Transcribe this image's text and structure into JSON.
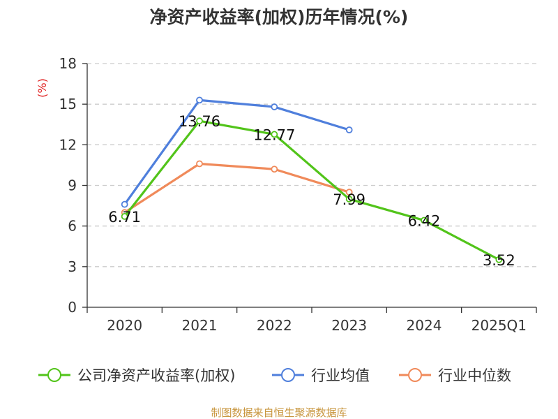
{
  "chart_data": {
    "type": "line",
    "title": "净资产收益率(加权)历年情况(%)",
    "ylabel": "(%)",
    "xlabel": "",
    "categories": [
      "2020",
      "2021",
      "2022",
      "2023",
      "2024",
      "2025Q1"
    ],
    "ylim": [
      0,
      18
    ],
    "yticks": [
      0,
      3,
      6,
      9,
      12,
      15,
      18
    ],
    "grid": "horizontal-dashed",
    "legend_position": "bottom",
    "series": [
      {
        "name": "公司净资产收益率(加权)",
        "color": "#52c41a",
        "values": [
          6.71,
          13.76,
          12.77,
          7.99,
          6.42,
          3.52
        ],
        "labels": [
          "6.71",
          "13.76",
          "12.77",
          "7.99",
          "6.42",
          "3.52"
        ]
      },
      {
        "name": "行业均值",
        "color": "#4f7fdc",
        "values": [
          7.6,
          15.3,
          14.8,
          13.1,
          null,
          null
        ]
      },
      {
        "name": "行业中位数",
        "color": "#f08a5a",
        "values": [
          7.0,
          10.6,
          10.2,
          8.5,
          null,
          null
        ]
      }
    ]
  },
  "source": "制图数据来自恒生聚源数据库"
}
